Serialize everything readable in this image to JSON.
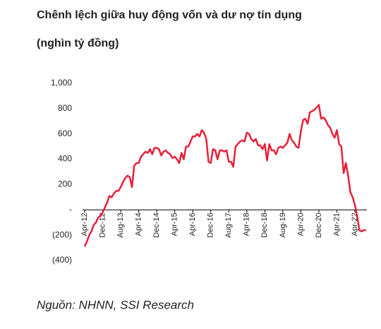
{
  "chart_data": {
    "type": "line",
    "title": "Chênh lệch giữa huy động vốn và dư nợ tín dụng",
    "subtitle": "(nghìn tỷ đồng)",
    "source": "Nguồn: NHNN, SSI Research",
    "categories": [
      "Apr-12",
      null,
      null,
      null,
      null,
      null,
      null,
      null,
      "Dec-12",
      null,
      null,
      null,
      null,
      null,
      null,
      null,
      "Aug-13",
      null,
      null,
      null,
      null,
      null,
      null,
      null,
      "Apr-14",
      null,
      null,
      null,
      null,
      null,
      null,
      null,
      "Dec-14",
      null,
      null,
      null,
      null,
      null,
      null,
      null,
      "Apr-15",
      null,
      null,
      null,
      null,
      null,
      null,
      null,
      "Apr-16",
      null,
      null,
      null,
      null,
      null,
      null,
      null,
      "Dec-16",
      null,
      null,
      null,
      null,
      null,
      null,
      null,
      "Aug-17",
      null,
      null,
      null,
      null,
      null,
      null,
      null,
      "Apr-18",
      null,
      null,
      null,
      null,
      null,
      null,
      null,
      "Dec-18",
      null,
      null,
      null,
      null,
      null,
      null,
      null,
      "Aug-19",
      null,
      null,
      null,
      null,
      null,
      null,
      null,
      "Apr-20",
      null,
      null,
      null,
      null,
      null,
      null,
      null,
      "Dec-20",
      null,
      null,
      null,
      null,
      null,
      null,
      null,
      "Apr-21",
      null,
      null,
      null,
      null,
      null,
      null,
      null,
      "Apr-22",
      null,
      null,
      null,
      null,
      null
    ],
    "series": [
      {
        "color": "#e8203a",
        "values": [
          -290,
          -250,
          -200,
          -170,
          -120,
          -100,
          -60,
          -50,
          -20,
          20,
          60,
          110,
          100,
          130,
          150,
          150,
          180,
          220,
          250,
          270,
          260,
          180,
          350,
          370,
          370,
          420,
          440,
          460,
          450,
          480,
          440,
          490,
          490,
          480,
          430,
          460,
          470,
          450,
          440,
          410,
          420,
          400,
          370,
          450,
          400,
          500,
          500,
          540,
          580,
          580,
          600,
          580,
          630,
          610,
          560,
          380,
          370,
          480,
          470,
          400,
          470,
          470,
          460,
          470,
          380,
          380,
          340,
          500,
          520,
          540,
          550,
          540,
          610,
          600,
          560,
          540,
          560,
          510,
          510,
          480,
          520,
          390,
          520,
          470,
          470,
          440,
          490,
          500,
          490,
          510,
          530,
          600,
          550,
          530,
          500,
          490,
          620,
          710,
          720,
          680,
          770,
          780,
          790,
          810,
          830,
          720,
          730,
          710,
          670,
          650,
          600,
          570,
          630,
          520,
          500,
          290,
          370,
          270,
          140,
          100,
          40,
          -50,
          -160,
          -170,
          -160,
          -160
        ]
      }
    ],
    "ylim": [
      -400,
      1000
    ],
    "yticks": [
      {
        "value": 1000,
        "label": "1,000"
      },
      800,
      600,
      400,
      200,
      {
        "value": 0,
        "label": "-"
      },
      {
        "value": -200,
        "label": "(200)"
      },
      {
        "value": -400,
        "label": "(400)"
      }
    ]
  }
}
